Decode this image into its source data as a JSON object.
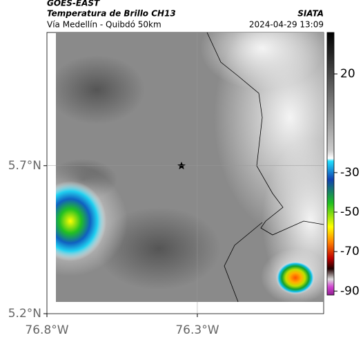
{
  "header": {
    "title": "GOES-EAST",
    "subtitle": "Temperatura de Brillo CH13",
    "region": "Vía Medellín - Quibdó 50km",
    "source": "SIATA",
    "datetime": "2024-04-29 13:09"
  },
  "map": {
    "xlim": [
      -76.8,
      -75.88
    ],
    "ylim": [
      5.2,
      6.15
    ],
    "xticks": [
      {
        "value": -76.8,
        "label": "76.8°W"
      },
      {
        "value": -76.3,
        "label": "76.3°W"
      }
    ],
    "yticks": [
      {
        "value": 5.7,
        "label": "5.7°N"
      },
      {
        "value": 5.2,
        "label": "5.2°N"
      }
    ],
    "grid": true
  },
  "colorbar": {
    "lim": [
      41,
      -92
    ],
    "ticks": [
      20,
      -30,
      -50,
      -70,
      -90
    ]
  }
}
